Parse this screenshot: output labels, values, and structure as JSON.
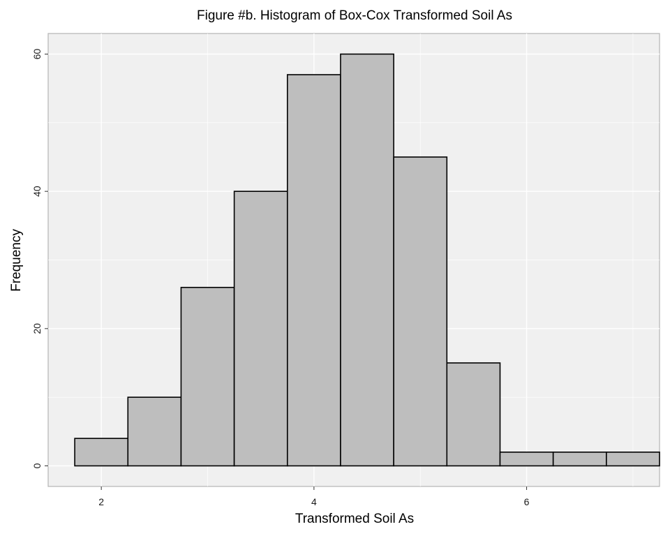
{
  "chart_data": {
    "type": "bar",
    "title": "Figure #b. Histogram of Box-Cox Transformed Soil As",
    "xlabel": "Transformed Soil As",
    "ylabel": "Frequency",
    "xlim": [
      1.5,
      7.25
    ],
    "ylim": [
      -3,
      63
    ],
    "x_ticks": [
      2,
      4,
      6
    ],
    "x_tick_labels": [
      "2",
      "4",
      "6"
    ],
    "y_ticks": [
      0,
      20,
      40,
      60
    ],
    "y_tick_labels": [
      "0",
      "20",
      "40",
      "60"
    ],
    "bin_width": 0.5,
    "bins": [
      {
        "start": 1.75,
        "end": 2.25,
        "count": 4
      },
      {
        "start": 2.25,
        "end": 2.75,
        "count": 10
      },
      {
        "start": 2.75,
        "end": 3.25,
        "count": 26
      },
      {
        "start": 3.25,
        "end": 3.75,
        "count": 40
      },
      {
        "start": 3.75,
        "end": 4.25,
        "count": 57
      },
      {
        "start": 4.25,
        "end": 4.75,
        "count": 60
      },
      {
        "start": 4.75,
        "end": 5.25,
        "count": 45
      },
      {
        "start": 5.25,
        "end": 5.75,
        "count": 15
      },
      {
        "start": 5.75,
        "end": 6.25,
        "count": 2
      },
      {
        "start": 6.25,
        "end": 6.75,
        "count": 2
      },
      {
        "start": 6.75,
        "end": 7.25,
        "count": 2
      }
    ],
    "grid": true,
    "colors": {
      "panel_background": "#f0f0f0",
      "panel_border": "#b3b3b3",
      "grid": "#ffffff",
      "bar_fill": "#bebebe",
      "bar_stroke": "#000000"
    }
  }
}
